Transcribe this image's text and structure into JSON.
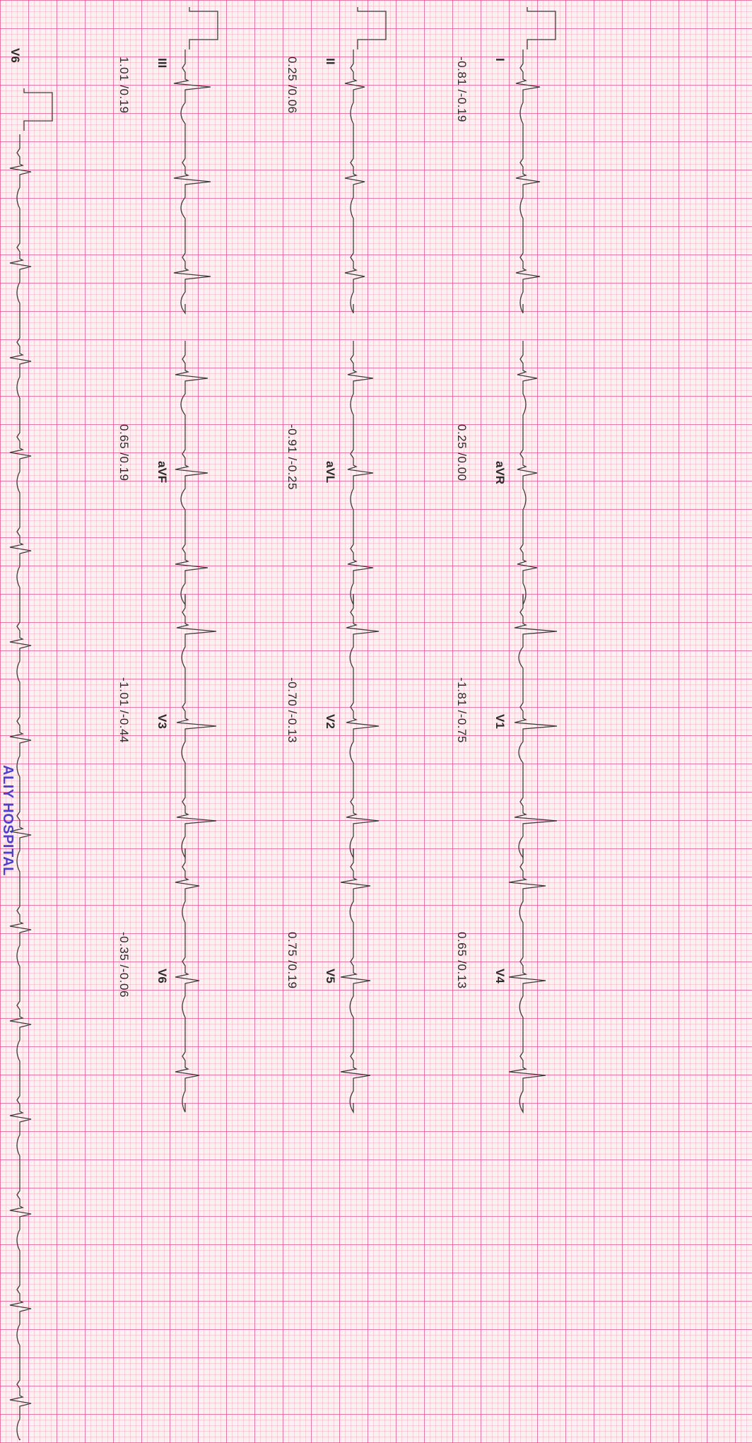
{
  "stamp": "ALIY HOSPITAL",
  "chart_data": {
    "type": "line",
    "orientation": "rotated-90-clockwise",
    "grid": true,
    "heart_rate_beats": 12,
    "leads": [
      {
        "label": "I",
        "measurement": "-0.81 /-0.19",
        "row": 0,
        "col": 0,
        "r_amp": 0.25,
        "s_amp": 0.6,
        "t_amp": 0.1
      },
      {
        "label": "aVR",
        "measurement": "0.25 /0.00",
        "row": 0,
        "col": 1,
        "r_amp": 0.2,
        "s_amp": 0.5,
        "t_amp": -0.1
      },
      {
        "label": "V1",
        "measurement": "-1.81 /-0.75",
        "row": 0,
        "col": 2,
        "r_amp": 0.3,
        "s_amp": 1.2,
        "t_amp": 0.15
      },
      {
        "label": "V4",
        "measurement": "0.65 /0.13",
        "row": 0,
        "col": 3,
        "r_amp": 0.5,
        "s_amp": 0.8,
        "t_amp": 0.12
      },
      {
        "label": "II",
        "measurement": "0.25 /0.06",
        "row": 1,
        "col": 0,
        "r_amp": 0.3,
        "s_amp": 0.4,
        "t_amp": 0.1
      },
      {
        "label": "aVL",
        "measurement": "-0.91 /-0.25",
        "row": 1,
        "col": 1,
        "r_amp": 0.2,
        "s_amp": 0.7,
        "t_amp": 0.1
      },
      {
        "label": "V2",
        "measurement": "-0.70 /-0.13",
        "row": 1,
        "col": 2,
        "r_amp": 0.25,
        "s_amp": 0.9,
        "t_amp": 0.12
      },
      {
        "label": "V5",
        "measurement": "0.75 /0.19",
        "row": 1,
        "col": 3,
        "r_amp": 0.45,
        "s_amp": 0.6,
        "t_amp": 0.12
      },
      {
        "label": "III",
        "measurement": "1.01 /0.19",
        "row": 2,
        "col": 0,
        "r_amp": 0.4,
        "s_amp": 0.9,
        "t_amp": 0.15
      },
      {
        "label": "aVF",
        "measurement": "0.65 /0.19",
        "row": 2,
        "col": 1,
        "r_amp": 0.35,
        "s_amp": 0.8,
        "t_amp": 0.15
      },
      {
        "label": "V3",
        "measurement": "-1.01 /-0.44",
        "row": 2,
        "col": 2,
        "r_amp": 0.3,
        "s_amp": 1.1,
        "t_amp": 0.12
      },
      {
        "label": "V6",
        "measurement": "-0.35 /-0.06",
        "row": 2,
        "col": 3,
        "r_amp": 0.35,
        "s_amp": 0.5,
        "t_amp": 0.1
      },
      {
        "label": "V6",
        "measurement": "",
        "row": 3,
        "col": 0,
        "rhythm": true,
        "r_amp": 0.35,
        "s_amp": 0.4,
        "t_amp": 0.1
      }
    ]
  },
  "colors": {
    "trace": "#3c3c3c",
    "stamp": "#3a30c9"
  }
}
